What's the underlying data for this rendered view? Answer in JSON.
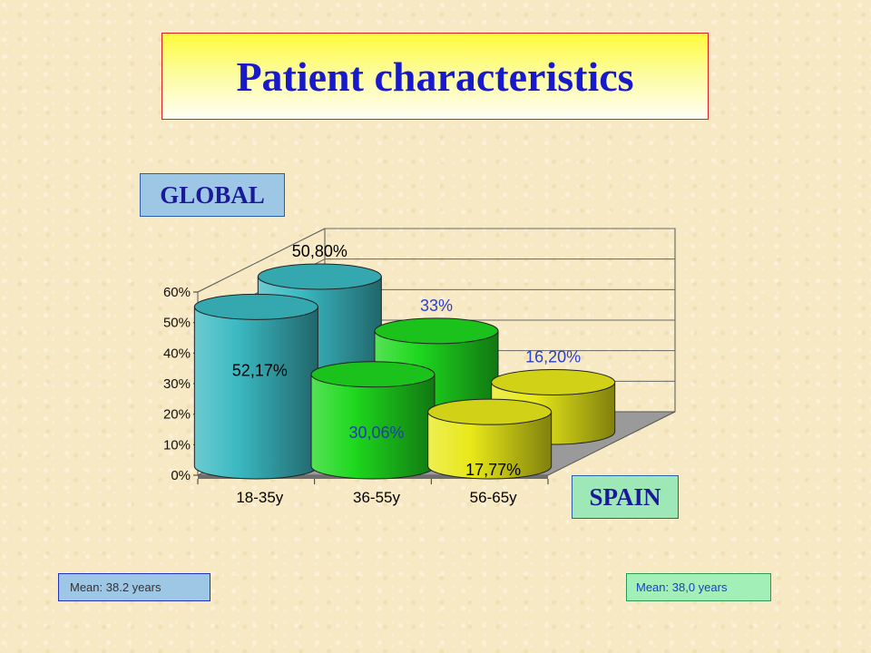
{
  "title": "Patient characteristics",
  "global_label": "GLOBAL",
  "spain_label": "SPAIN",
  "mean_global": "Mean: 38.2 years",
  "mean_spain": "Mean: 38,0 years",
  "chart_data": {
    "type": "bar",
    "categories": [
      "18-35y",
      "36-55y",
      "56-65y"
    ],
    "yticks": [
      "0%",
      "10%",
      "20%",
      "30%",
      "40%",
      "50%",
      "60%"
    ],
    "ylim": [
      0,
      60
    ],
    "grid": true,
    "series": [
      {
        "name": "GLOBAL",
        "values": [
          52.17,
          30.06,
          17.77
        ],
        "labels": [
          "52,17%",
          "30,06%",
          "17,77%"
        ]
      },
      {
        "name": "SPAIN",
        "values": [
          50.8,
          33,
          16.2
        ],
        "labels": [
          "50,80%",
          "33%",
          "16,20%"
        ]
      }
    ],
    "colors": {
      "bar1": "#3bb9c2",
      "bar2": "#1ed81e",
      "bar3": "#e8e819",
      "back_label_1": "#000000",
      "back_label_2": "#2b3fc8",
      "front_label": "#000000",
      "front_label_2": "#1f3fa8"
    }
  }
}
